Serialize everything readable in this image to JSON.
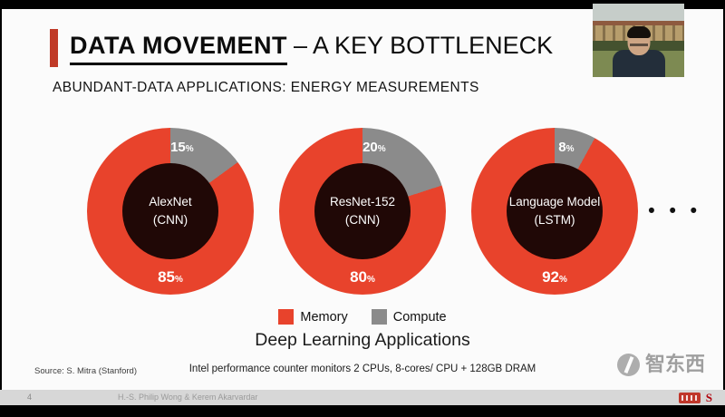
{
  "ui": {
    "percent_sign": "%"
  },
  "colors": {
    "memory": "#E8432C",
    "compute": "#8B8B8B",
    "hole": "#200806",
    "accent": "#C03A27"
  },
  "page": {
    "title_emphasis": "DATA MOVEMENT",
    "title_rest": "– A KEY BOTTLENECK",
    "subtitle": "ABUNDANT-DATA APPLICATIONS: ENERGY MEASUREMENTS",
    "caption": "Deep Learning Applications",
    "source": "Source: S. Mitra (Stanford)",
    "note": "Intel performance counter monitors 2 CPUs, 8-cores/ CPU + 128GB DRAM",
    "ellipsis": "• • •",
    "watermark": "智东西"
  },
  "legend": [
    {
      "label": "Memory",
      "color": "#E8432C"
    },
    {
      "label": "Compute",
      "color": "#8B8B8B"
    }
  ],
  "chart_data": [
    {
      "type": "pie",
      "variant": "donut",
      "title": "AlexNet (CNN)",
      "center_label": [
        "AlexNet",
        "(CNN)"
      ],
      "categories": [
        "Memory",
        "Compute"
      ],
      "values": [
        85,
        15
      ],
      "unit": "%",
      "legend_position": "bottom-center"
    },
    {
      "type": "pie",
      "variant": "donut",
      "title": "ResNet-152 (CNN)",
      "center_label": [
        "ResNet-152",
        "(CNN)"
      ],
      "categories": [
        "Memory",
        "Compute"
      ],
      "values": [
        80,
        20
      ],
      "unit": "%",
      "legend_position": "bottom-center"
    },
    {
      "type": "pie",
      "variant": "donut",
      "title": "Language Model (LSTM)",
      "center_label": [
        "Language Model",
        "(LSTM)"
      ],
      "categories": [
        "Memory",
        "Compute"
      ],
      "values": [
        92,
        8
      ],
      "unit": "%",
      "legend_position": "bottom-center"
    }
  ],
  "footer": {
    "page_number": "4",
    "credit": "H.-S. Philip Wong & Kerem Akarvardar",
    "stanford_letter": "S"
  }
}
